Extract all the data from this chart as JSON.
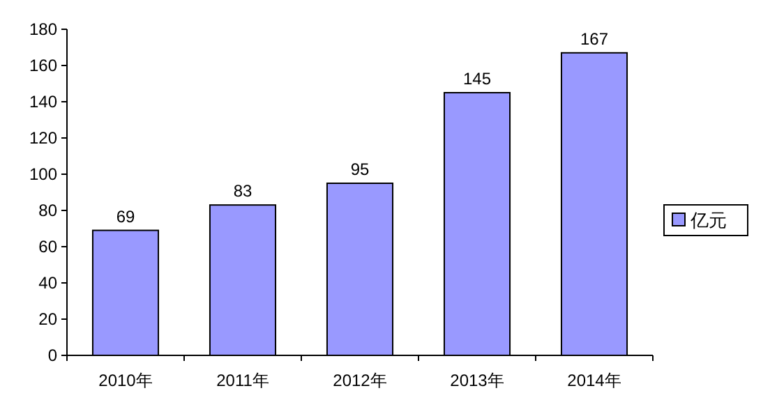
{
  "chart_data": {
    "type": "bar",
    "categories": [
      "2010年",
      "2011年",
      "2012年",
      "2013年",
      "2014年"
    ],
    "series": [
      {
        "name": "亿元",
        "color": "#9999ff",
        "values": [
          69,
          83,
          95,
          145,
          167
        ]
      }
    ],
    "ylim": [
      0,
      180
    ],
    "yticks": [
      0,
      20,
      40,
      60,
      80,
      100,
      120,
      140,
      160,
      180
    ],
    "grid": false,
    "legend": "right",
    "data_labels": true
  }
}
